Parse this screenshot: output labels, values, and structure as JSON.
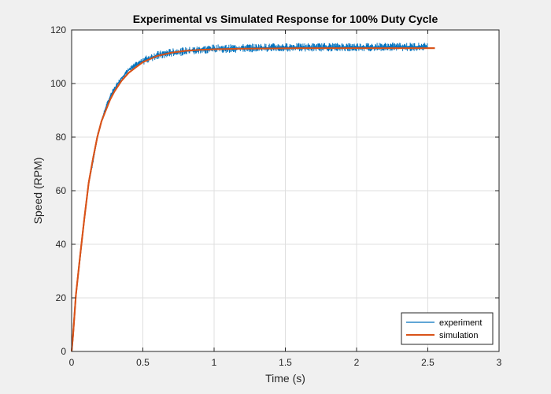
{
  "chart_data": {
    "type": "line",
    "title": "Experimental vs Simulated Response for 100% Duty Cycle",
    "xlabel": "Time (s)",
    "ylabel": "Speed (RPM)",
    "xlim": [
      0,
      3
    ],
    "ylim": [
      0,
      120
    ],
    "xticks": [
      0,
      0.5,
      1,
      1.5,
      2,
      2.5,
      3
    ],
    "xtick_labels": [
      "0",
      "0.5",
      "1",
      "1.5",
      "2",
      "2.5",
      "3"
    ],
    "yticks": [
      0,
      20,
      40,
      60,
      80,
      100,
      120
    ],
    "ytick_labels": [
      "0",
      "20",
      "40",
      "60",
      "80",
      "100",
      "120"
    ],
    "grid": true,
    "legend_position": "bottom-right",
    "series": [
      {
        "name": "experiment",
        "color": "#0072bd",
        "x": [
          0,
          0.01,
          0.03,
          0.06,
          0.09,
          0.12,
          0.15,
          0.18,
          0.21,
          0.24,
          0.27,
          0.3,
          0.35,
          0.4,
          0.45,
          0.5,
          0.6,
          0.7,
          0.8,
          0.9,
          1.0,
          1.1,
          1.2,
          1.3,
          1.4,
          1.5,
          1.6,
          1.7,
          1.8,
          1.9,
          2.0,
          2.1,
          2.2,
          2.3,
          2.4,
          2.5
        ],
        "y": [
          0,
          5,
          21,
          35,
          50,
          63,
          71,
          80,
          86,
          91,
          95,
          98,
          102,
          105,
          107,
          108.5,
          110.5,
          111.5,
          112,
          112.5,
          113,
          113,
          113.2,
          113.3,
          113.4,
          113.5,
          113.5,
          113.5,
          113.6,
          113.6,
          113.6,
          113.6,
          113.7,
          113.7,
          113.7,
          113.7
        ]
      },
      {
        "name": "simulation",
        "color": "#d95319",
        "x": [
          0,
          0.01,
          0.03,
          0.06,
          0.09,
          0.12,
          0.15,
          0.18,
          0.21,
          0.24,
          0.27,
          0.3,
          0.35,
          0.4,
          0.45,
          0.5,
          0.6,
          0.7,
          0.8,
          0.9,
          1.0,
          1.2,
          1.4,
          1.6,
          1.8,
          2.0,
          2.2,
          2.4,
          2.55
        ],
        "y": [
          0,
          6,
          21,
          36,
          50,
          63,
          72,
          80,
          86,
          90,
          94,
          97,
          101,
          104,
          106,
          108,
          110.3,
          111.5,
          112.2,
          112.6,
          112.8,
          113,
          113.1,
          113.2,
          113.2,
          113.2,
          113.2,
          113.2,
          113.2
        ]
      }
    ]
  }
}
